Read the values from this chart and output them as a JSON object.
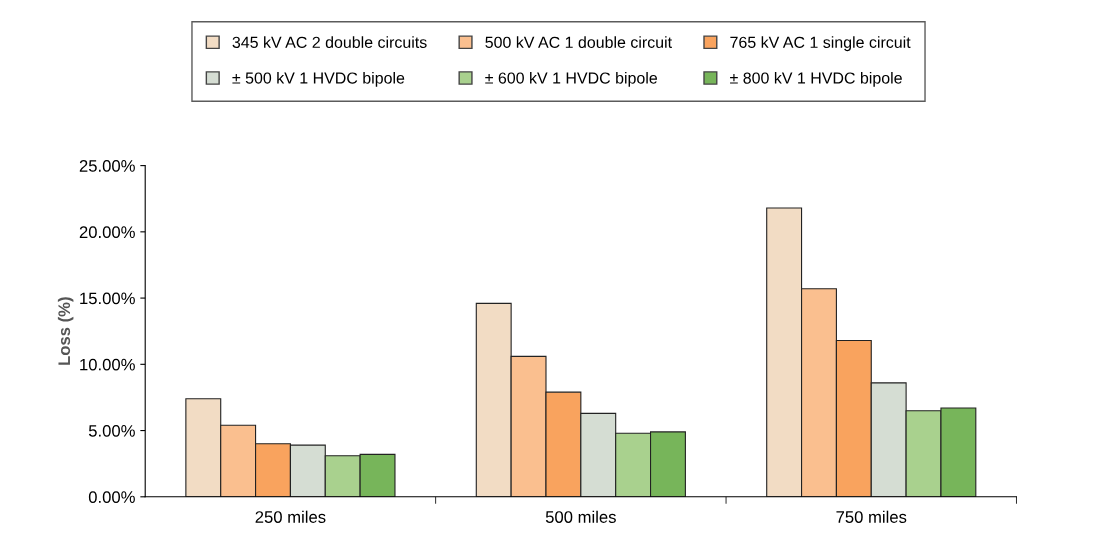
{
  "chart_data": {
    "type": "bar",
    "ylabel": "Loss (%)",
    "categories": [
      "250 miles",
      "500 miles",
      "750 miles"
    ],
    "series": [
      {
        "name": "345 kV AC 2 double circuits",
        "color": "#f2dcc4",
        "values": [
          7.4,
          14.6,
          21.8
        ]
      },
      {
        "name": "500 kV AC 1 double circuit",
        "color": "#fabf8f",
        "values": [
          5.4,
          10.6,
          15.7
        ]
      },
      {
        "name": "765 kV AC 1 single circuit",
        "color": "#f9a35e",
        "values": [
          4.0,
          7.9,
          11.8
        ]
      },
      {
        "name": "± 500 kV 1 HVDC bipole",
        "color": "#d5ddd3",
        "values": [
          3.9,
          6.3,
          8.6
        ]
      },
      {
        "name": "± 600 kV 1 HVDC bipole",
        "color": "#a9d18e",
        "values": [
          3.1,
          4.8,
          6.5
        ]
      },
      {
        "name": "± 800 kV 1 HVDC bipole",
        "color": "#77b55a",
        "values": [
          3.2,
          4.9,
          6.7
        ]
      }
    ],
    "ylim": [
      0,
      25
    ],
    "yticks": [
      {
        "value": 0,
        "label": "0.00%"
      },
      {
        "value": 5,
        "label": "5.00%"
      },
      {
        "value": 10,
        "label": "10.00%"
      },
      {
        "value": 15,
        "label": "15.00%"
      },
      {
        "value": 20,
        "label": "20.00%"
      },
      {
        "value": 25,
        "label": "25.00%"
      }
    ],
    "grid": false,
    "legend": "top"
  }
}
